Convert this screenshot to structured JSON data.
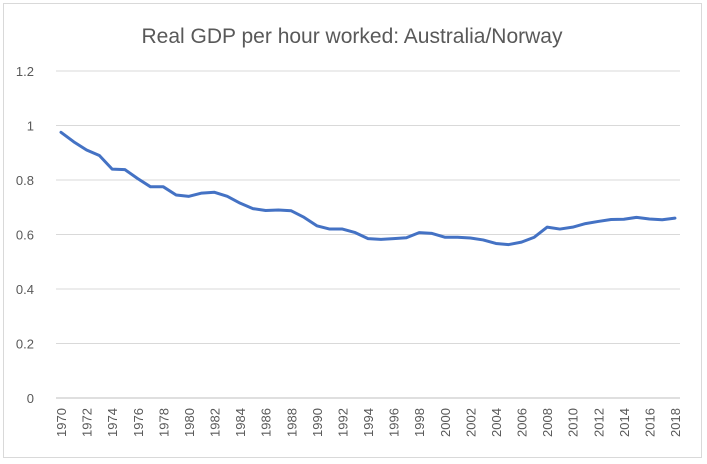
{
  "chart_data": {
    "type": "line",
    "title": "Real GDP per hour worked: Australia/Norway",
    "xlabel": "",
    "ylabel": "",
    "ylim": [
      0,
      1.2
    ],
    "y_ticks": [
      "0",
      "0.2",
      "0.4",
      "0.6",
      "0.8",
      "1",
      "1.2"
    ],
    "y_tick_values": [
      0,
      0.2,
      0.4,
      0.6,
      0.8,
      1.0,
      1.2
    ],
    "x_ticks": [
      "1970",
      "1972",
      "1974",
      "1976",
      "1978",
      "1980",
      "1982",
      "1984",
      "1986",
      "1988",
      "1990",
      "1992",
      "1994",
      "1996",
      "1998",
      "2000",
      "2002",
      "2004",
      "2006",
      "2008",
      "2010",
      "2012",
      "2014",
      "2016",
      "2018"
    ],
    "grid": true,
    "legend": false,
    "series": [
      {
        "color": "#4472c4",
        "x": [
          1970,
          1971,
          1972,
          1973,
          1974,
          1975,
          1976,
          1977,
          1978,
          1979,
          1980,
          1981,
          1982,
          1983,
          1984,
          1985,
          1986,
          1987,
          1988,
          1989,
          1990,
          1991,
          1992,
          1993,
          1994,
          1995,
          1996,
          1997,
          1998,
          1999,
          2000,
          2001,
          2002,
          2003,
          2004,
          2005,
          2006,
          2007,
          2008,
          2009,
          2010,
          2011,
          2012,
          2013,
          2014,
          2015,
          2016,
          2017,
          2018
        ],
        "values": [
          0.975,
          0.94,
          0.91,
          0.89,
          0.84,
          0.838,
          0.805,
          0.775,
          0.775,
          0.745,
          0.74,
          0.752,
          0.755,
          0.74,
          0.715,
          0.695,
          0.688,
          0.69,
          0.687,
          0.663,
          0.632,
          0.62,
          0.62,
          0.607,
          0.585,
          0.582,
          0.585,
          0.588,
          0.607,
          0.604,
          0.59,
          0.59,
          0.587,
          0.58,
          0.567,
          0.563,
          0.572,
          0.59,
          0.627,
          0.62,
          0.627,
          0.64,
          0.648,
          0.655,
          0.656,
          0.663,
          0.657,
          0.654,
          0.66
        ]
      }
    ]
  }
}
